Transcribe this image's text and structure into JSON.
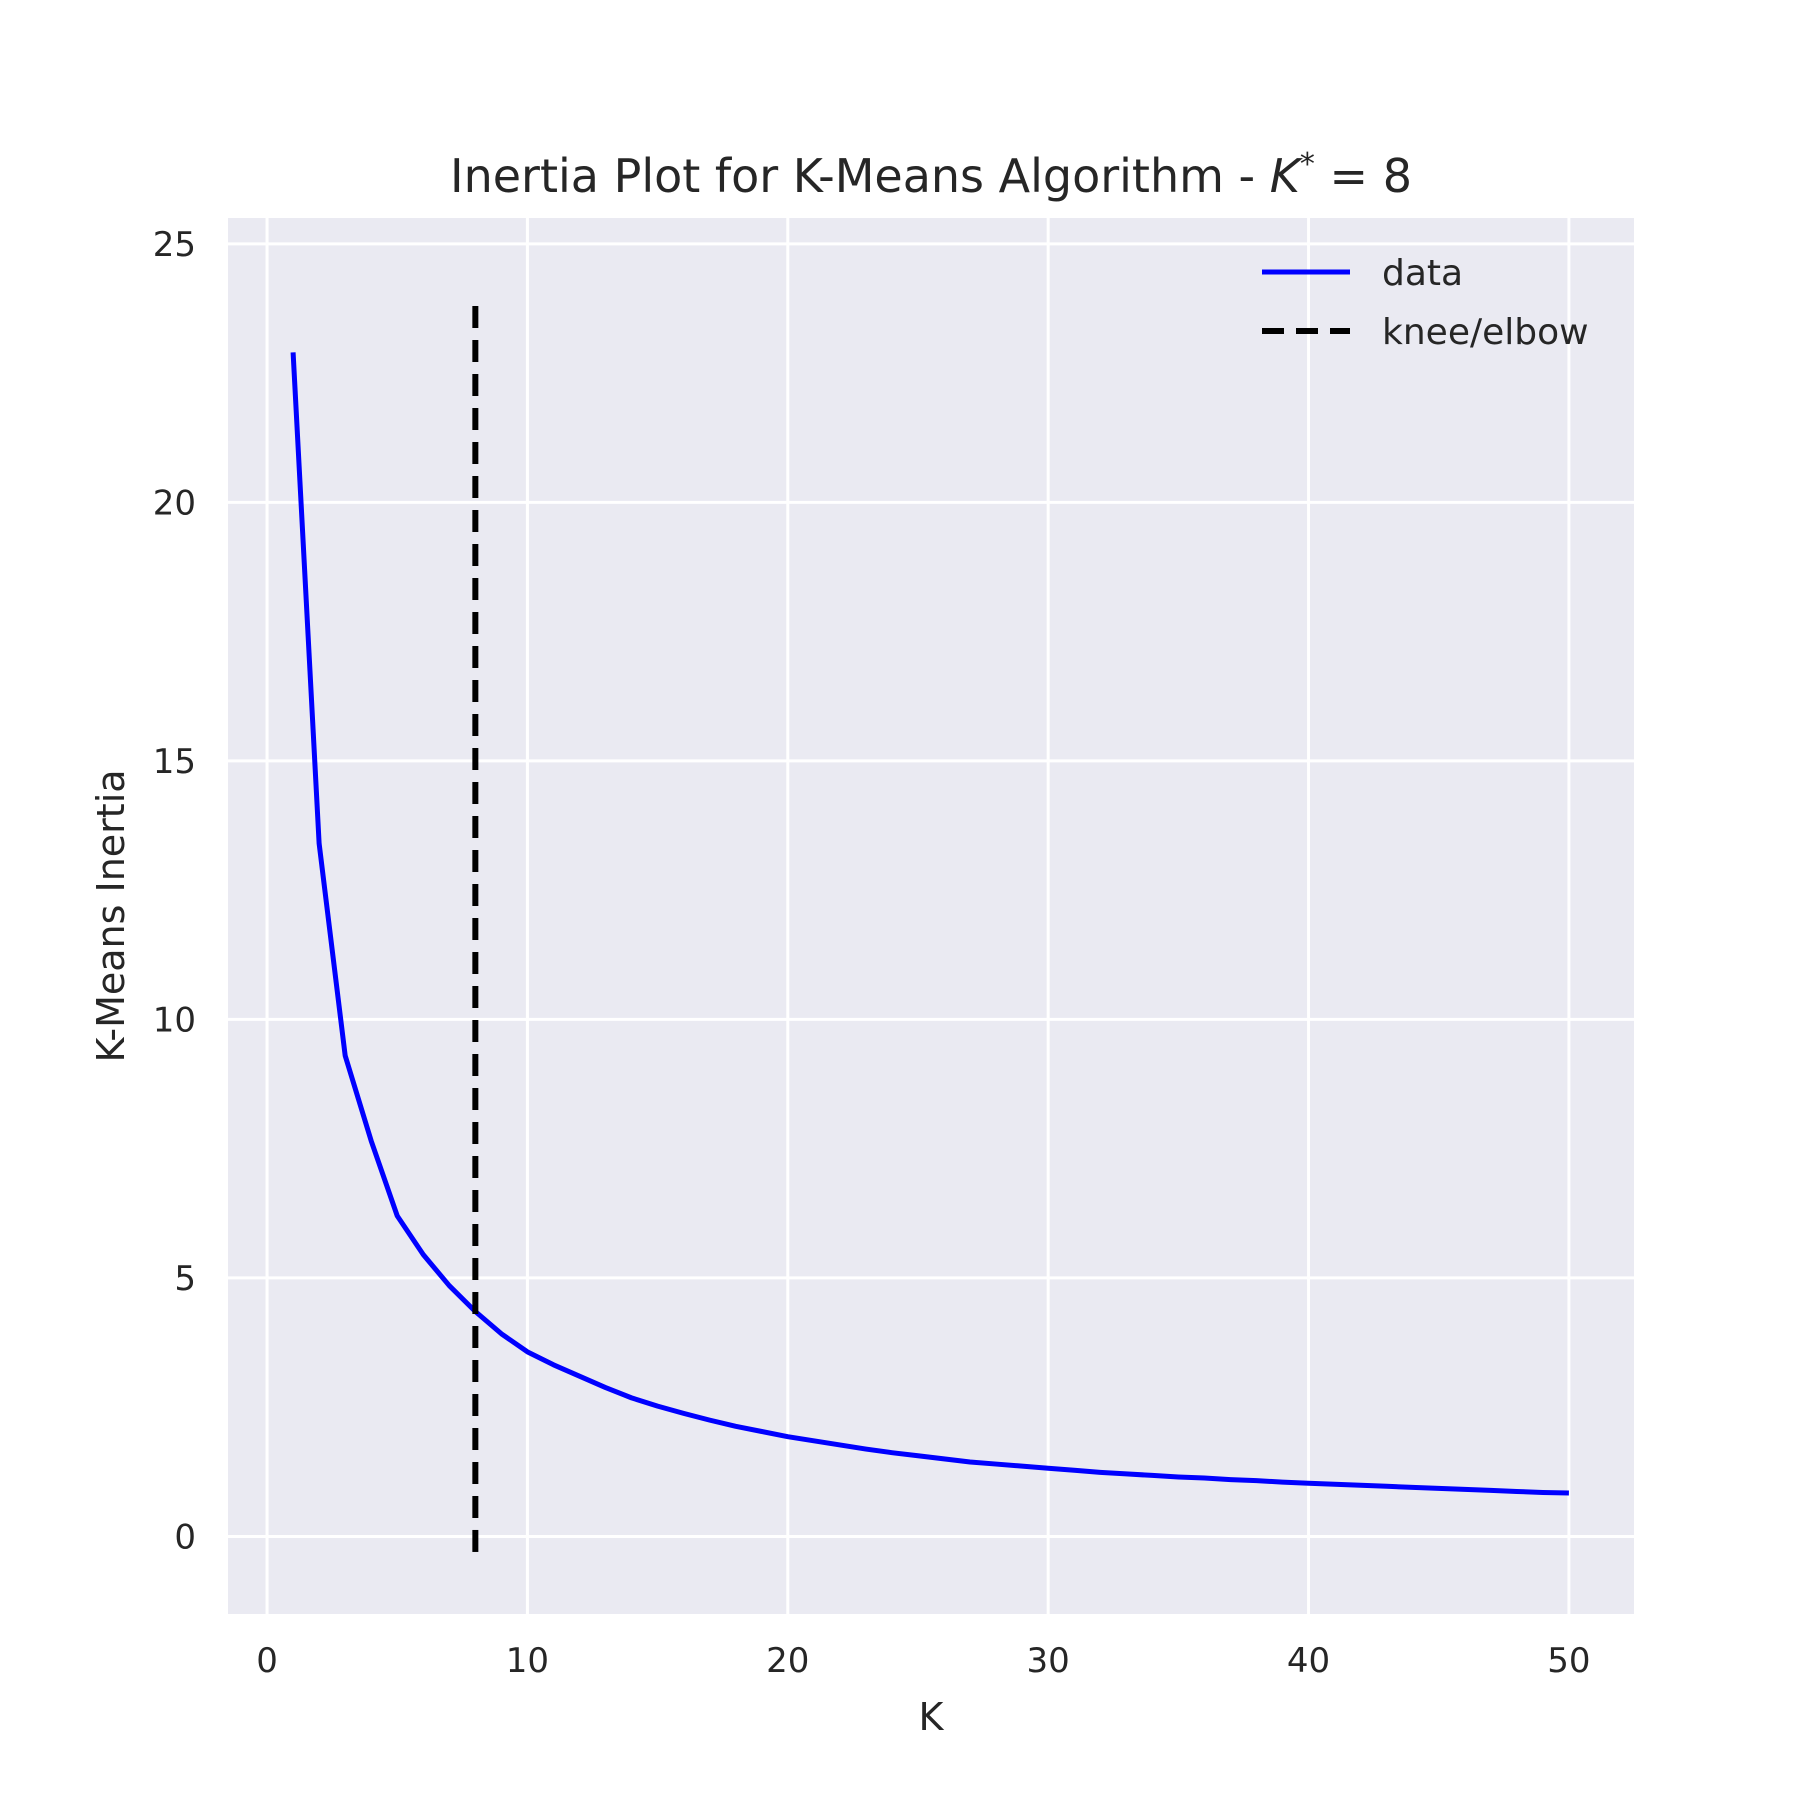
{
  "chart_data": {
    "type": "line",
    "title": "Inertia Plot for K-Means Algorithm - ",
    "title_symbol": "K",
    "title_superscript": "*",
    "title_suffix": " = 8",
    "xlabel": "K",
    "ylabel": "K-Means Inertia",
    "xlim": [
      -1.5,
      52.5
    ],
    "ylim": [
      -1.5,
      25.5
    ],
    "xticks": [
      0,
      10,
      20,
      30,
      40,
      50
    ],
    "yticks": [
      0,
      5,
      10,
      15,
      20,
      25
    ],
    "grid": true,
    "legend_position": "top-right",
    "background_color": "#eaeaf2",
    "grid_color": "#ffffff",
    "series": [
      {
        "name": "data",
        "color": "#0000ff",
        "style": "solid",
        "x": [
          1,
          2,
          3,
          4,
          5,
          6,
          7,
          8,
          9,
          10,
          11,
          12,
          13,
          14,
          15,
          16,
          17,
          18,
          19,
          20,
          21,
          22,
          23,
          24,
          25,
          26,
          27,
          28,
          29,
          30,
          31,
          32,
          33,
          34,
          35,
          36,
          37,
          38,
          39,
          40,
          41,
          42,
          43,
          44,
          45,
          46,
          47,
          48,
          49,
          50
        ],
        "y": [
          22.9,
          13.4,
          9.3,
          7.65,
          6.2,
          5.45,
          4.85,
          4.35,
          3.92,
          3.57,
          3.32,
          3.1,
          2.88,
          2.68,
          2.52,
          2.38,
          2.25,
          2.13,
          2.03,
          1.93,
          1.85,
          1.77,
          1.69,
          1.62,
          1.56,
          1.5,
          1.44,
          1.4,
          1.36,
          1.32,
          1.28,
          1.24,
          1.21,
          1.18,
          1.15,
          1.13,
          1.1,
          1.08,
          1.05,
          1.03,
          1.01,
          0.99,
          0.97,
          0.95,
          0.93,
          0.91,
          0.89,
          0.87,
          0.85,
          0.84
        ]
      },
      {
        "name": "knee/elbow",
        "color": "#000000",
        "style": "dashed",
        "x": [
          8,
          8
        ],
        "y": [
          -0.3,
          24
        ]
      }
    ]
  }
}
